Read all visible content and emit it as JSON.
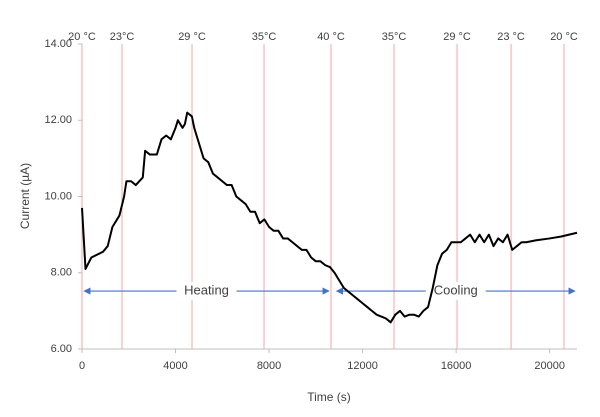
{
  "chart_data": {
    "type": "line",
    "x_label": "Time (s)",
    "y_label": "Current (µA)",
    "xlim": [
      0,
      21170
    ],
    "ylim": [
      6,
      14
    ],
    "xticks": [
      0,
      4000,
      8000,
      12000,
      16000,
      20000
    ],
    "yticks": [
      {
        "value": 6,
        "label": "6.00"
      },
      {
        "value": 8,
        "label": "8.00"
      },
      {
        "value": 10,
        "label": "10.00"
      },
      {
        "value": 12,
        "label": "12.00"
      },
      {
        "value": 14,
        "label": "14.00"
      }
    ],
    "x": [
      0,
      150,
      400,
      900,
      1100,
      1300,
      1600,
      1800,
      1900,
      2100,
      2300,
      2600,
      2700,
      2900,
      3200,
      3400,
      3600,
      3800,
      4000,
      4100,
      4300,
      4400,
      4500,
      4700,
      4800,
      5000,
      5200,
      5400,
      5600,
      5800,
      6000,
      6200,
      6400,
      6600,
      6800,
      7000,
      7200,
      7400,
      7600,
      7800,
      8000,
      8200,
      8400,
      8600,
      8800,
      9000,
      9200,
      9400,
      9600,
      9800,
      10000,
      10200,
      10400,
      10600,
      10800,
      11000,
      11200,
      11400,
      11600,
      11800,
      12000,
      12200,
      12400,
      12600,
      12800,
      13000,
      13200,
      13400,
      13600,
      13800,
      14000,
      14200,
      14400,
      14600,
      14800,
      15000,
      15200,
      15400,
      15600,
      15800,
      16000,
      16200,
      16400,
      16600,
      16800,
      17000,
      17200,
      17400,
      17600,
      17800,
      18000,
      18200,
      18400,
      18600,
      18800,
      19000,
      19400,
      20000,
      20500,
      21170
    ],
    "series": [
      {
        "color": "#000000",
        "values": [
          9.7,
          8.1,
          8.4,
          8.55,
          8.7,
          9.2,
          9.5,
          10.0,
          10.4,
          10.4,
          10.3,
          10.5,
          11.2,
          11.1,
          11.1,
          11.5,
          11.6,
          11.5,
          11.8,
          12.0,
          11.8,
          11.9,
          12.2,
          12.1,
          11.8,
          11.4,
          11.0,
          10.9,
          10.6,
          10.5,
          10.4,
          10.3,
          10.3,
          10.0,
          9.9,
          9.8,
          9.6,
          9.6,
          9.3,
          9.4,
          9.2,
          9.1,
          9.1,
          8.9,
          8.9,
          8.8,
          8.7,
          8.6,
          8.6,
          8.4,
          8.3,
          8.3,
          8.2,
          8.15,
          8.0,
          7.8,
          7.6,
          7.5,
          7.4,
          7.3,
          7.2,
          7.1,
          7.0,
          6.9,
          6.85,
          6.8,
          6.7,
          6.9,
          7.0,
          6.85,
          6.9,
          6.9,
          6.85,
          7.0,
          7.1,
          7.6,
          8.2,
          8.5,
          8.6,
          8.8,
          8.8,
          8.8,
          8.9,
          9.0,
          8.8,
          9.0,
          8.8,
          9.0,
          8.7,
          8.9,
          8.8,
          9.0,
          8.6,
          8.7,
          8.8,
          8.8,
          8.85,
          8.9,
          8.95,
          9.05
        ]
      }
    ],
    "markers_color": "#f4a6a6",
    "markers": [
      {
        "x": 0,
        "label": "20 °C"
      },
      {
        "x": 1711,
        "label": "23°C"
      },
      {
        "x": 4705,
        "label": "29 °C"
      },
      {
        "x": 7785,
        "label": "35°C"
      },
      {
        "x": 10650,
        "label": "40 °C"
      },
      {
        "x": 13345,
        "label": "35°C"
      },
      {
        "x": 16040,
        "label": "29 °C"
      },
      {
        "x": 18350,
        "label": "23 °C"
      },
      {
        "x": 20615,
        "label": "20 °C"
      }
    ],
    "annotations_color": "#4472c4",
    "annotations": [
      {
        "text": "Heating",
        "from": 0,
        "to": 10650,
        "y": 7.52
      },
      {
        "text": "Cooling",
        "from": 10800,
        "to": 21170,
        "y": 7.52
      }
    ]
  }
}
